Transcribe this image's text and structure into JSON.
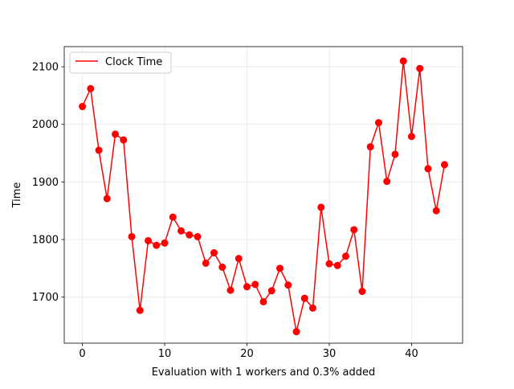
{
  "chart_data": {
    "type": "line",
    "title": "",
    "xlabel": "Evaluation with 1 workers and 0.3% added",
    "ylabel": "Time",
    "xlim": [
      -2.2,
      46.2
    ],
    "ylim": [
      1620,
      2135
    ],
    "xticks": [
      0,
      10,
      20,
      30,
      40
    ],
    "yticks": [
      1700,
      1800,
      1900,
      2000,
      2100
    ],
    "grid": true,
    "legend_position": "top-left",
    "series": [
      {
        "name": "Clock Time",
        "color": "#ff0000",
        "marker": "circle",
        "x": [
          0,
          1,
          2,
          3,
          4,
          5,
          6,
          7,
          8,
          9,
          10,
          11,
          12,
          13,
          14,
          15,
          16,
          17,
          18,
          19,
          20,
          21,
          22,
          23,
          24,
          25,
          26,
          27,
          28,
          29,
          30,
          31,
          32,
          33,
          34,
          35,
          36,
          37,
          38,
          39,
          40,
          41,
          42,
          43,
          44
        ],
        "values": [
          2031,
          2062,
          1955,
          1871,
          1983,
          1973,
          1805,
          1677,
          1798,
          1790,
          1794,
          1839,
          1815,
          1808,
          1805,
          1759,
          1777,
          1752,
          1712,
          1767,
          1718,
          1722,
          1692,
          1711,
          1750,
          1721,
          1640,
          1698,
          1681,
          1856,
          1758,
          1755,
          1771,
          1817,
          1710,
          1961,
          2003,
          1901,
          1948,
          2110,
          1979,
          2097,
          1923,
          1850,
          1930
        ]
      }
    ]
  }
}
